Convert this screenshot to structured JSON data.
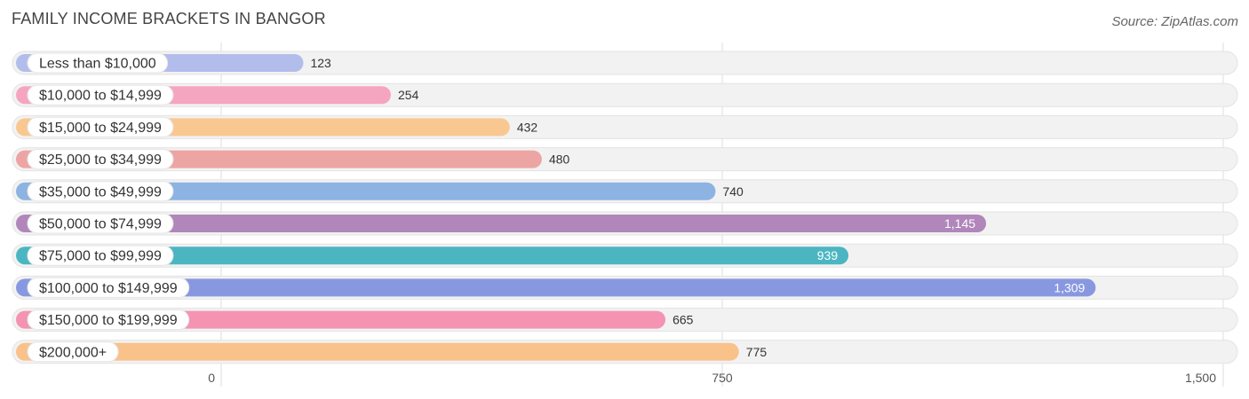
{
  "header": {
    "title": "FAMILY INCOME BRACKETS IN BANGOR",
    "source": "Source: ZipAtlas.com"
  },
  "chart_data": {
    "type": "bar",
    "orientation": "horizontal",
    "title": "FAMILY INCOME BRACKETS IN BANGOR",
    "categories": [
      "Less than $10,000",
      "$10,000 to $14,999",
      "$15,000 to $24,999",
      "$25,000 to $34,999",
      "$35,000 to $49,999",
      "$50,000 to $74,999",
      "$75,000 to $99,999",
      "$100,000 to $149,999",
      "$150,000 to $199,999",
      "$200,000+"
    ],
    "values": [
      123,
      254,
      432,
      480,
      740,
      1145,
      939,
      1309,
      665,
      775
    ],
    "value_labels": [
      "123",
      "254",
      "432",
      "480",
      "740",
      "1,145",
      "939",
      "1,309",
      "665",
      "775"
    ],
    "colors": [
      "#b3bdec",
      "#f6a5c0",
      "#f9c891",
      "#eda5a3",
      "#8cb3e2",
      "#b086bb",
      "#4bb6c2",
      "#8898e0",
      "#f593b2",
      "#f9c28b"
    ],
    "xlim": [
      0,
      1500
    ],
    "xticks": [
      0,
      750,
      1500
    ],
    "xtick_labels": [
      "0",
      "750",
      "1,500"
    ],
    "grid": true,
    "label_inside_threshold": 900
  }
}
